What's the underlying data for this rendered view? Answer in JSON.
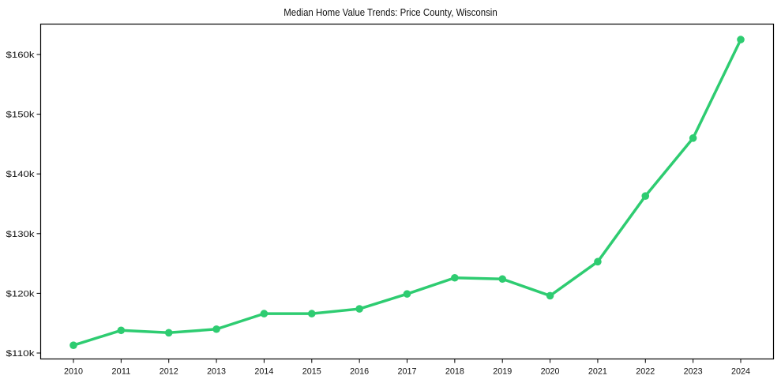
{
  "chart_data": {
    "type": "line",
    "title": "Median Home Value Trends: Price County, Wisconsin",
    "xlabel": "",
    "ylabel": "",
    "categories": [
      "2010",
      "2011",
      "2012",
      "2013",
      "2014",
      "2015",
      "2016",
      "2017",
      "2018",
      "2019",
      "2020",
      "2021",
      "2022",
      "2023",
      "2024"
    ],
    "series": [
      {
        "name": "Median Home Value",
        "color": "#2ecc71",
        "values": [
          111300,
          113800,
          113400,
          114000,
          116600,
          116600,
          117400,
          119900,
          122600,
          122400,
          119600,
          125300,
          136300,
          146000,
          162500
        ]
      }
    ],
    "yticks": [
      110000,
      120000,
      130000,
      140000,
      150000,
      160000
    ],
    "ytick_labels": [
      "$110k",
      "$120k",
      "$130k",
      "$140k",
      "$150k",
      "$160k"
    ],
    "ylim": [
      109400,
      165200
    ],
    "grid": false,
    "legend": "none"
  }
}
